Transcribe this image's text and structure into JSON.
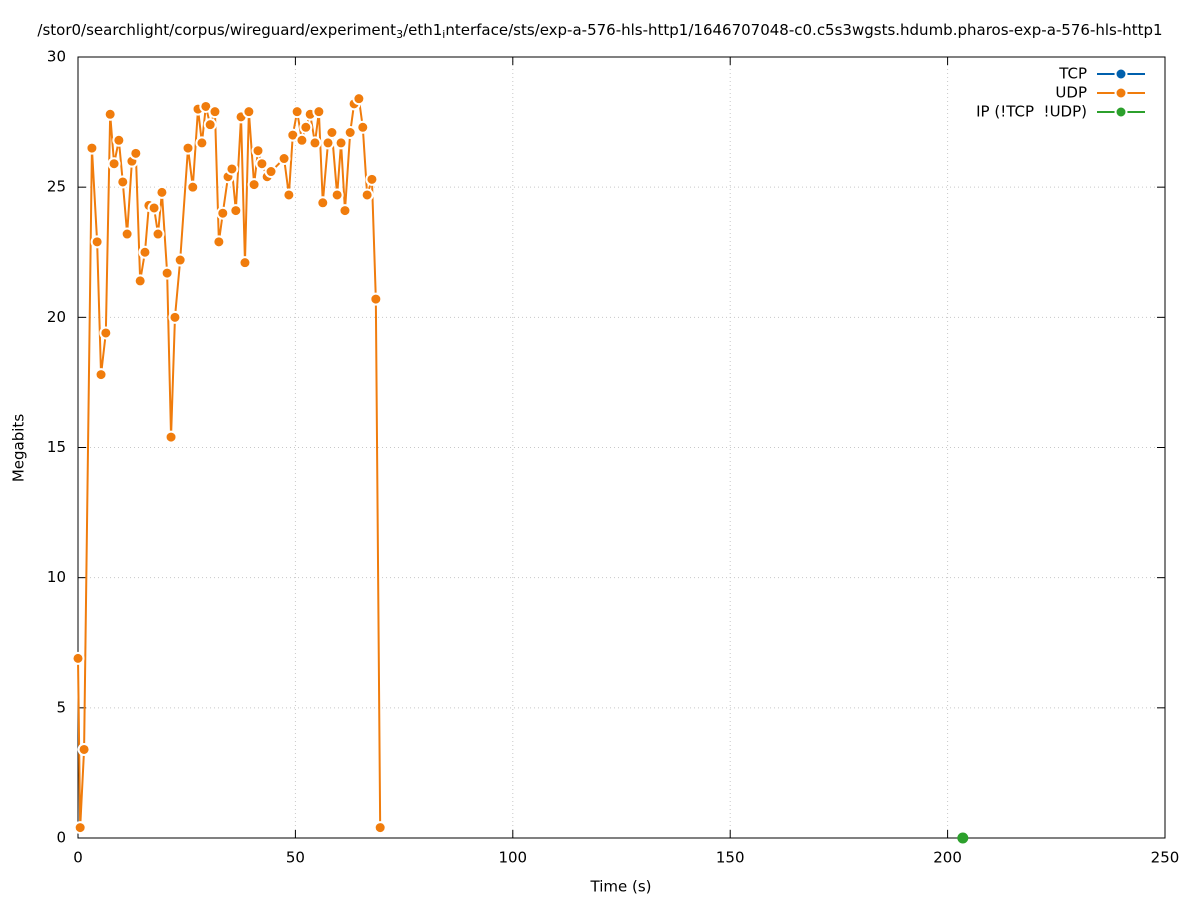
{
  "chart_data": {
    "type": "line",
    "title": [
      "/stor0/searchlight/corpus/wireguard/experiment",
      "3",
      "/eth1",
      "i",
      "nterface/sts/exp-a-576-hls-http1/1646707048-c0.c5s3wgsts.hdumb.pharos-exp-a-576-hls-http1"
    ],
    "x_label": "Time (s)",
    "y_label": "Megabits",
    "xlim": [
      0,
      250
    ],
    "xticks": [
      0,
      50,
      100,
      150,
      200,
      250
    ],
    "ylim": [
      0,
      30
    ],
    "yticks": [
      0,
      5,
      10,
      15,
      20,
      25,
      30
    ],
    "grid": true,
    "legend": "top-right",
    "series": [
      {
        "name": "TCP",
        "color": "#0060ad",
        "x": [],
        "values": []
      },
      {
        "name": "UDP",
        "color": "#f07c0c",
        "x": [
          0,
          0.5,
          1.4,
          3.2,
          4.4,
          5.3,
          6.4,
          7.4,
          8.3,
          9.4,
          10.3,
          11.3,
          12.4,
          13.3,
          14.3,
          15.4,
          16.3,
          17.5,
          18.4,
          19.3,
          20.5,
          21.4,
          22.3,
          23.5,
          25.3,
          26.4,
          27.6,
          28.5,
          29.4,
          30.4,
          31.5,
          32.4,
          33.3,
          34.5,
          35.4,
          36.3,
          37.5,
          38.4,
          39.3,
          40.5,
          41.4,
          42.3,
          43.5,
          44.4,
          47.4,
          48.5,
          49.4,
          50.4,
          51.5,
          52.4,
          53.4,
          54.5,
          55.4,
          56.3,
          57.5,
          58.4,
          59.6,
          60.5,
          61.4,
          62.6,
          63.5,
          64.6,
          65.5,
          66.5,
          67.6,
          68.5,
          69.5
        ],
        "values": [
          6.9,
          0.4,
          3.4,
          26.5,
          22.9,
          17.8,
          19.4,
          27.8,
          25.9,
          26.8,
          25.2,
          23.2,
          26.0,
          26.3,
          21.4,
          22.5,
          24.3,
          24.2,
          23.2,
          24.8,
          21.7,
          15.4,
          20.0,
          22.2,
          26.5,
          25.0,
          28.0,
          26.7,
          28.1,
          27.4,
          27.9,
          22.9,
          24.0,
          25.4,
          25.7,
          24.1,
          27.7,
          22.1,
          27.9,
          25.1,
          26.4,
          25.9,
          25.4,
          25.6,
          26.1,
          24.7,
          27.0,
          27.9,
          26.8,
          27.3,
          27.8,
          26.7,
          27.9,
          24.4,
          26.7,
          27.1,
          24.7,
          26.7,
          24.1,
          27.1,
          28.2,
          28.4,
          27.3,
          24.7,
          25.3,
          20.7,
          0.4
        ]
      },
      {
        "name": "IP (!TCP  !UDP)",
        "color": "#2ca02c",
        "x": [
          203.5
        ],
        "values": [
          0
        ]
      }
    ]
  }
}
